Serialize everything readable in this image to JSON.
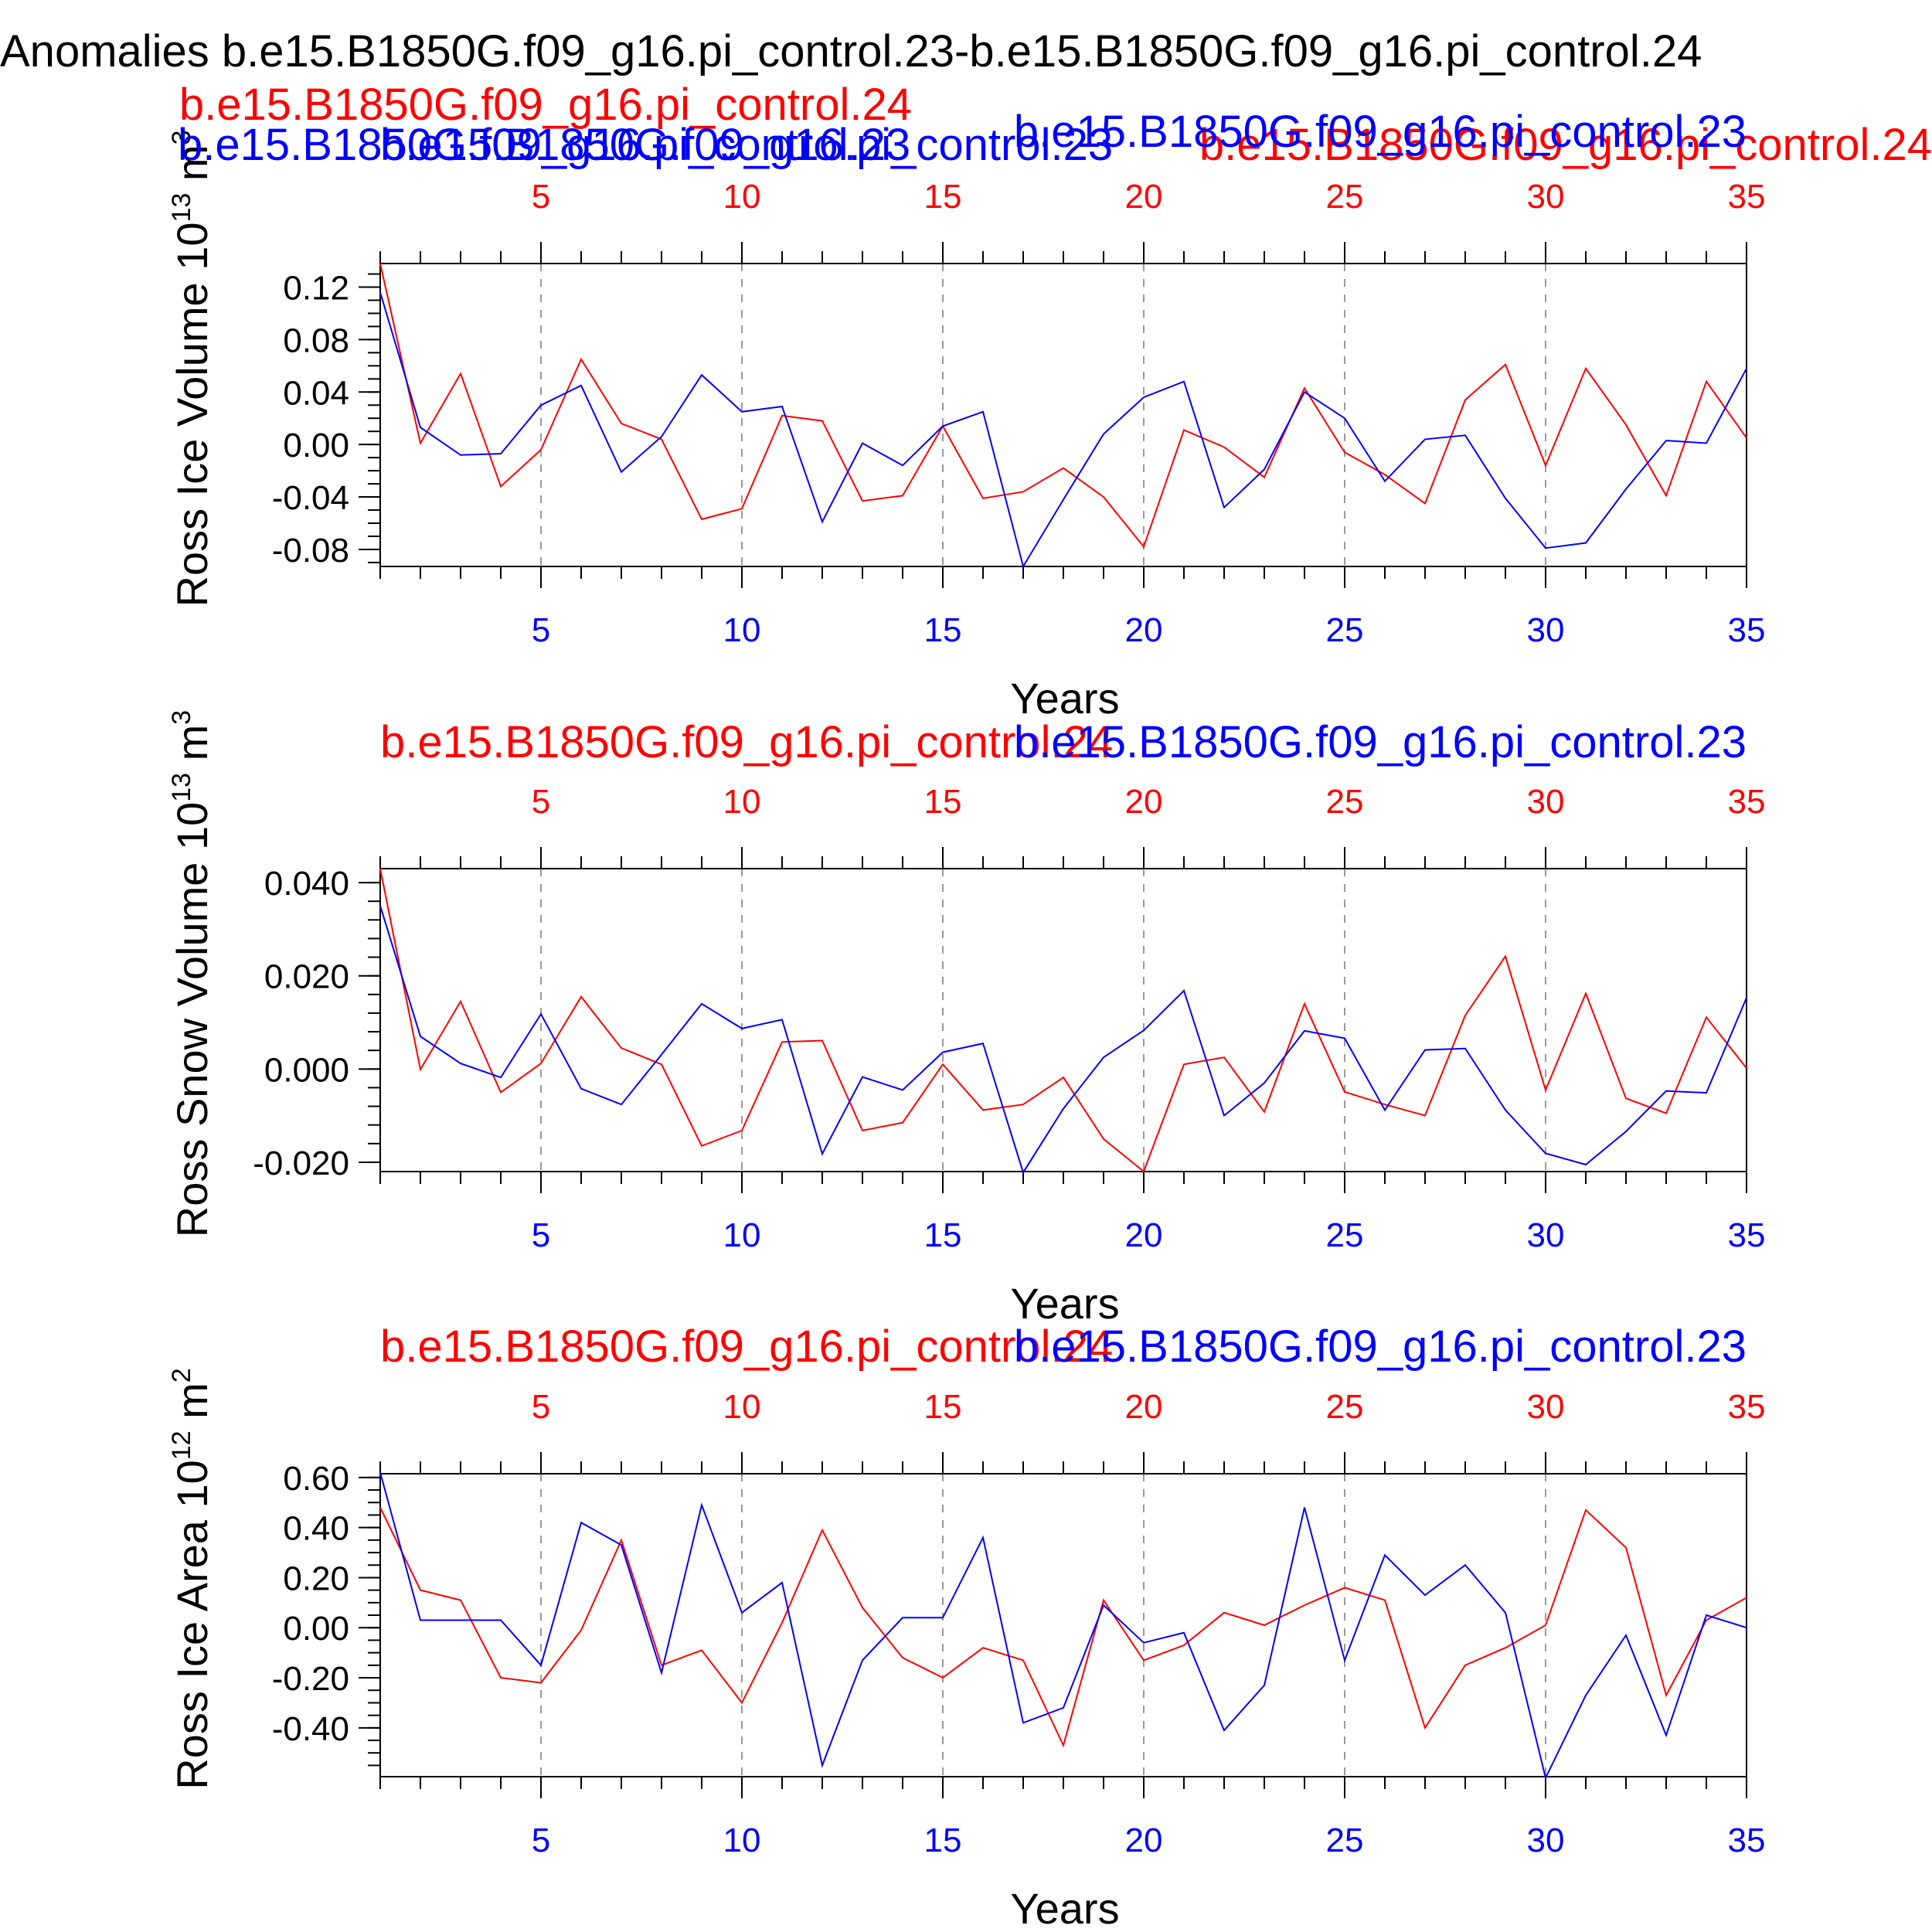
{
  "page_title": "Anomalies b.e15.B1850G.f09_g16.pi_control.23-b.e15.B1850G.f09_g16.pi_control.24",
  "colors": {
    "series_23": "#0000ff",
    "series_24": "#ff0000",
    "axis": "#000000",
    "grid": "#999999"
  },
  "chart_data": [
    {
      "type": "line",
      "ylabel": "Ross Ice Volume 10",
      "ylabel_exp": "13",
      "ylabel_unit": "m",
      "ylabel_unit_exp": "3",
      "xlabel": "Years",
      "xlim": [
        1,
        35
      ],
      "ylim": [
        -0.093,
        0.138
      ],
      "yticks": [
        -0.08,
        -0.04,
        0.0,
        0.04,
        0.08,
        0.12
      ],
      "ytick_labels": [
        "-0.08",
        "-0.04",
        "0.00",
        "0.04",
        "0.08",
        "0.12"
      ],
      "ymin_step": 0.01,
      "xticks": [
        5,
        10,
        15,
        20,
        25,
        30,
        35
      ],
      "xtick_labels": [
        "5",
        "10",
        "15",
        "20",
        "25",
        "30",
        "35"
      ],
      "grid": true,
      "series": [
        {
          "name": "b.e15.B1850G.f09_g16.pi_control.24",
          "color": "#ff0000",
          "x": [
            1,
            2,
            3,
            4,
            5,
            6,
            7,
            8,
            9,
            10,
            11,
            12,
            13,
            14,
            15,
            16,
            17,
            18,
            19,
            20,
            21,
            22,
            23,
            24,
            25,
            26,
            27,
            28,
            29,
            30,
            31,
            32,
            33,
            34,
            35
          ],
          "values": [
            0.138,
            0.001,
            0.054,
            -0.032,
            -0.004,
            0.065,
            0.016,
            0.004,
            -0.057,
            -0.049,
            0.022,
            0.018,
            -0.043,
            -0.039,
            0.014,
            -0.041,
            -0.036,
            -0.018,
            -0.04,
            -0.078,
            0.011,
            -0.002,
            -0.025,
            0.043,
            -0.006,
            -0.023,
            -0.045,
            0.034,
            0.061,
            -0.016,
            0.058,
            0.015,
            -0.039,
            0.048,
            0.005
          ]
        },
        {
          "name": "b.e15.B1850G.f09_g16.pi_control.23",
          "color": "#0000ff",
          "x": [
            1,
            2,
            3,
            4,
            5,
            6,
            7,
            8,
            9,
            10,
            11,
            12,
            13,
            14,
            15,
            16,
            17,
            18,
            19,
            20,
            21,
            22,
            23,
            24,
            25,
            26,
            27,
            28,
            29,
            30,
            31,
            32,
            33,
            34,
            35
          ],
          "values": [
            0.116,
            0.013,
            -0.008,
            -0.007,
            0.03,
            0.045,
            -0.021,
            0.006,
            0.053,
            0.025,
            0.029,
            -0.059,
            0.001,
            -0.016,
            0.014,
            0.025,
            -0.093,
            -0.042,
            0.008,
            0.036,
            0.048,
            -0.048,
            -0.019,
            0.04,
            0.02,
            -0.028,
            0.004,
            0.007,
            -0.041,
            -0.079,
            -0.075,
            -0.034,
            0.003,
            0.001,
            0.058
          ]
        }
      ]
    },
    {
      "type": "line",
      "ylabel": "Ross Snow Volume 10",
      "ylabel_exp": "13",
      "ylabel_unit": "m",
      "ylabel_unit_exp": "3",
      "xlabel": "Years",
      "xlim": [
        1,
        35
      ],
      "ylim": [
        -0.022,
        0.043
      ],
      "yticks": [
        -0.02,
        0.0,
        0.02,
        0.04
      ],
      "ytick_labels": [
        "-0.020",
        "0.000",
        "0.020",
        "0.040"
      ],
      "ymin_step": 0.004,
      "xticks": [
        5,
        10,
        15,
        20,
        25,
        30,
        35
      ],
      "xtick_labels": [
        "5",
        "10",
        "15",
        "20",
        "25",
        "30",
        "35"
      ],
      "grid": true,
      "series": [
        {
          "name": "b.e15.B1850G.f09_g16.pi_control.24",
          "color": "#ff0000",
          "x": [
            1,
            2,
            3,
            4,
            5,
            6,
            7,
            8,
            9,
            10,
            11,
            12,
            13,
            14,
            15,
            16,
            17,
            18,
            19,
            20,
            21,
            22,
            23,
            24,
            25,
            26,
            27,
            28,
            29,
            30,
            31,
            32,
            33,
            34,
            35
          ],
          "values": [
            0.043,
            -0.0001,
            0.0145,
            -0.005,
            0.0012,
            0.0155,
            0.0045,
            0.001,
            -0.0165,
            -0.0132,
            0.0058,
            0.0061,
            -0.0132,
            -0.0115,
            0.001,
            -0.0088,
            -0.0076,
            -0.0018,
            -0.015,
            -0.022,
            0.001,
            0.0025,
            -0.0092,
            0.014,
            -0.0049,
            -0.0076,
            -0.01,
            0.0115,
            0.0242,
            -0.0045,
            0.0162,
            -0.0063,
            -0.0095,
            0.0111,
            0.0002
          ]
        },
        {
          "name": "b.e15.B1850G.f09_g16.pi_control.23",
          "color": "#0000ff",
          "x": [
            1,
            2,
            3,
            4,
            5,
            6,
            7,
            8,
            9,
            10,
            11,
            12,
            13,
            14,
            15,
            16,
            17,
            18,
            19,
            20,
            21,
            22,
            23,
            24,
            25,
            26,
            27,
            28,
            29,
            30,
            31,
            32,
            33,
            34,
            35
          ],
          "values": [
            0.035,
            0.007,
            0.0012,
            -0.0018,
            0.0118,
            -0.0042,
            -0.0076,
            0.0031,
            0.014,
            0.0087,
            0.0106,
            -0.0182,
            -0.0017,
            -0.0045,
            0.0036,
            0.0055,
            -0.0222,
            -0.0085,
            0.0025,
            0.0083,
            0.0168,
            -0.01,
            -0.003,
            0.0082,
            0.0066,
            -0.0088,
            0.0041,
            0.0044,
            -0.0088,
            -0.0181,
            -0.0205,
            -0.0134,
            -0.0047,
            -0.0051,
            0.0153
          ]
        }
      ]
    },
    {
      "type": "line",
      "ylabel": "Ross Ice Area 10",
      "ylabel_exp": "12",
      "ylabel_unit": "m",
      "ylabel_unit_exp": "2",
      "xlabel": "Years",
      "xlim": [
        1,
        35
      ],
      "ylim": [
        -0.595,
        0.615
      ],
      "yticks": [
        -0.4,
        -0.2,
        0.0,
        0.2,
        0.4,
        0.6
      ],
      "ytick_labels": [
        "-0.40",
        "-0.20",
        "0.00",
        "0.20",
        "0.40",
        "0.60"
      ],
      "ymin_step": 0.05,
      "xticks": [
        5,
        10,
        15,
        20,
        25,
        30,
        35
      ],
      "xtick_labels": [
        "5",
        "10",
        "15",
        "20",
        "25",
        "30",
        "35"
      ],
      "grid": true,
      "series": [
        {
          "name": "b.e15.B1850G.f09_g16.pi_control.24",
          "color": "#ff0000",
          "x": [
            1,
            2,
            3,
            4,
            5,
            6,
            7,
            8,
            9,
            10,
            11,
            12,
            13,
            14,
            15,
            16,
            17,
            18,
            19,
            20,
            21,
            22,
            23,
            24,
            25,
            26,
            27,
            28,
            29,
            30,
            31,
            32,
            33,
            34,
            35
          ],
          "values": [
            0.48,
            0.15,
            0.11,
            -0.2,
            -0.22,
            -0.01,
            0.35,
            -0.15,
            -0.09,
            -0.3,
            0.02,
            0.39,
            0.08,
            -0.12,
            -0.2,
            -0.08,
            -0.13,
            -0.47,
            0.11,
            -0.13,
            -0.07,
            0.06,
            0.01,
            0.09,
            0.16,
            0.11,
            -0.4,
            -0.15,
            -0.08,
            0.01,
            0.47,
            0.32,
            -0.27,
            0.03,
            0.12
          ]
        },
        {
          "name": "b.e15.B1850G.f09_g16.pi_control.23",
          "color": "#0000ff",
          "x": [
            1,
            2,
            3,
            4,
            5,
            6,
            7,
            8,
            9,
            10,
            11,
            12,
            13,
            14,
            15,
            16,
            17,
            18,
            19,
            20,
            21,
            22,
            23,
            24,
            25,
            26,
            27,
            28,
            29,
            30,
            31,
            32,
            33,
            34,
            35
          ],
          "values": [
            0.62,
            0.03,
            0.03,
            0.03,
            -0.15,
            0.42,
            0.33,
            -0.18,
            0.49,
            0.06,
            0.18,
            -0.55,
            -0.13,
            0.04,
            0.04,
            0.36,
            -0.38,
            -0.32,
            0.09,
            -0.06,
            -0.02,
            -0.41,
            -0.23,
            0.48,
            -0.13,
            0.29,
            0.13,
            0.25,
            0.06,
            -0.6,
            -0.27,
            -0.03,
            -0.43,
            0.05,
            0.0
          ]
        }
      ]
    }
  ]
}
